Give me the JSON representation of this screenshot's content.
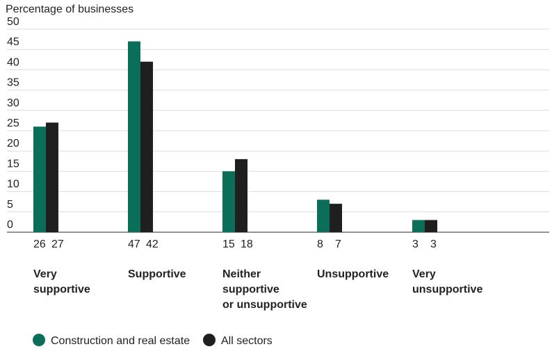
{
  "chart_data": {
    "type": "bar",
    "ylabel": "Percentage of businesses",
    "ylim": [
      0,
      50
    ],
    "yticks": [
      0,
      5,
      10,
      15,
      20,
      25,
      30,
      35,
      40,
      45,
      50
    ],
    "grid": true,
    "legend_position": "bottom-left",
    "categories": [
      [
        "Very",
        "supportive"
      ],
      [
        "Supportive"
      ],
      [
        "Neither",
        "supportive",
        "or unsupportive"
      ],
      [
        "Unsupportive"
      ],
      [
        "Very",
        "unsupportive"
      ]
    ],
    "series": [
      {
        "name": "Construction and real estate",
        "color": "#0b6e59",
        "values": [
          26,
          47,
          15,
          8,
          3
        ]
      },
      {
        "name": "All sectors",
        "color": "#1f1f1f",
        "values": [
          27,
          42,
          18,
          7,
          3
        ]
      }
    ],
    "value_labels": [
      [
        "26",
        "27"
      ],
      [
        "47",
        "42"
      ],
      [
        "15",
        "18"
      ],
      [
        "8",
        "7"
      ],
      [
        "3",
        "3"
      ]
    ]
  }
}
